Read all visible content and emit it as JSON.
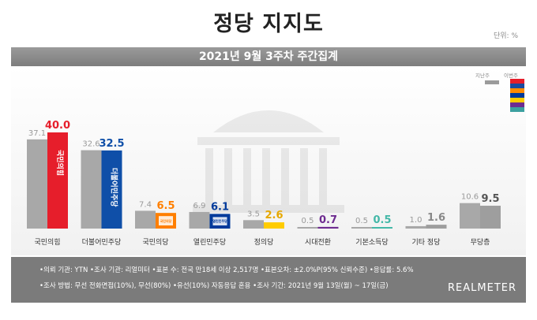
{
  "title": "정당 지지도",
  "unit": "단위: %",
  "subtitle": "2021년 9월 3주차 주간집계",
  "legend": {
    "prev_label": "지난주",
    "curr_label": "이번주",
    "colors": [
      "#e61e2b",
      "#1a4ba0",
      "#ff8c00",
      "#003a9b",
      "#ffcc00",
      "#6e2c90",
      "#3ca0a0"
    ]
  },
  "chart_data": {
    "type": "bar",
    "title": "정당 지지도",
    "subtitle": "2021년 9월 3주차 주간집계",
    "categories": [
      "국민의힘",
      "더불어민주당",
      "국민의당",
      "열린민주당",
      "정의당",
      "시대전환",
      "기본소득당",
      "기타 정당",
      "무당층"
    ],
    "series": [
      {
        "name": "지난주",
        "values": [
          37.1,
          32.6,
          7.4,
          6.9,
          3.5,
          0.5,
          0.5,
          1.0,
          10.6
        ]
      },
      {
        "name": "이번주",
        "values": [
          40.0,
          32.5,
          6.5,
          6.1,
          2.6,
          0.7,
          0.5,
          1.6,
          9.5
        ]
      }
    ],
    "colors": [
      "#e61e2b",
      "#0f4fa8",
      "#ff7f00",
      "#003a9b",
      "#ffcc00",
      "#6e2c90",
      "#44b8a8",
      "#9e9e9e",
      "#9e9e9e"
    ],
    "value_label_colors": [
      "#e61e2b",
      "#0f4fa8",
      "#ff7f00",
      "#003a9b",
      "#e6a800",
      "#6e2c90",
      "#44b8a8",
      "#888888",
      "#555555"
    ],
    "ylim": [
      0,
      45
    ],
    "logos": [
      "국민의힘",
      "더불어민주당",
      "국민의당",
      "열린민주당",
      "정의당",
      "",
      "",
      "",
      ""
    ]
  },
  "notes": {
    "line1": "•의뢰 기관: YTN •조사 기관: 리얼미터 •표본 수: 전국 만18세 이상 2,517명 •표본오차: ±2.0%P(95% 신뢰수준) •응답률: 5.6%",
    "line2": "•조사 방법: 무선 전화면접(10%), 무선(80%) •유선(10%) 자동응답 혼용 •조사 기간: 2021년 9월 13일(월) ~ 17일(금)"
  },
  "brand": "REALMETER"
}
